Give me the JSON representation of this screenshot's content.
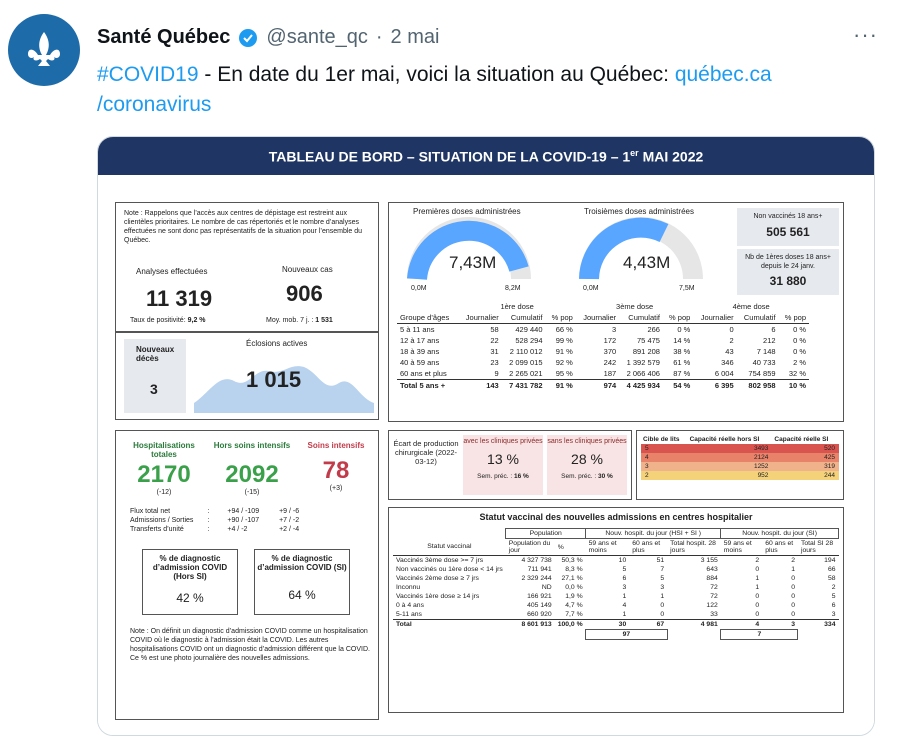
{
  "tweet": {
    "name": "Santé Québec",
    "handle": "@sante_qc",
    "date": "2 mai",
    "more": "···",
    "hashtag": "#COVID19",
    "text": " - En date du 1er mai, voici la situation au Québec: ",
    "link": "québec.ca /coronavirus"
  },
  "dashboard": {
    "title_pre": "TABLEAU DE BORD – SITUATION DE LA COVID-19 – 1",
    "title_sup": "er",
    "title_post": " MAI 2022",
    "note": "Note : Rappelons que l’accès aux centres de dépistage est restreint aux clientèles prioritaires. Le nombre de cas répertoriés et le nombre d’analyses effectuées ne sont donc pas représentatifs de la situation pour l’ensemble du Québec.",
    "analyses_label": "Analyses effectuées",
    "analyses_value": "11 319",
    "positivity_label": "Taux de positivité:",
    "positivity_value": "9,2 %",
    "cases_label": "Nouveaux cas",
    "cases_value": "906",
    "cases_avg_label": "Moy. mob. 7 j. :",
    "cases_avg_value": "1 531",
    "deaths_label": "Nouveaux décès",
    "deaths_value": "3",
    "eclosions_label": "Éclosions actives",
    "eclosions_value": "1 015",
    "dose1_label": "Premières doses administrées",
    "dose1_value": "7,43M",
    "dose1_min": "0,0M",
    "dose1_max": "8,2M",
    "dose3_label": "Troisièmes doses administrées",
    "dose3_value": "4,43M",
    "dose3_min": "0,0M",
    "dose3_max": "7,5M",
    "unvacc_label": "Non vaccinés 18 ans+",
    "unvacc_value": "505 561",
    "firstdose_label": "Nb de 1ères doses 18 ans+ depuis le 24 janv.",
    "firstdose_value": "31 880",
    "vacc_table": {
      "groups": [
        "1ère dose",
        "3ème dose",
        "4ème dose"
      ],
      "headers": [
        "Groupe d’âges",
        "Journalier",
        "Cumulatif",
        "% pop",
        "Journalier",
        "Cumulatif",
        "% pop",
        "Journalier",
        "Cumulatif",
        "% pop"
      ],
      "rows": [
        [
          "5 à 11 ans",
          "58",
          "429 440",
          "66 %",
          "3",
          "266",
          "0 %",
          "0",
          "6",
          "0 %"
        ],
        [
          "12 à 17 ans",
          "22",
          "528 294",
          "99 %",
          "172",
          "75 475",
          "14 %",
          "2",
          "212",
          "0 %"
        ],
        [
          "18 à 39 ans",
          "31",
          "2 110 012",
          "91 %",
          "370",
          "891 208",
          "38 %",
          "43",
          "7 148",
          "0 %"
        ],
        [
          "40 à 59 ans",
          "23",
          "2 099 015",
          "92 %",
          "242",
          "1 392 579",
          "61 %",
          "346",
          "40 733",
          "2 %"
        ],
        [
          "60 ans et plus",
          "9",
          "2 265 021",
          "95 %",
          "187",
          "2 066 406",
          "87 %",
          "6 004",
          "754 859",
          "32 %"
        ],
        [
          "Total 5 ans +",
          "143",
          "7 431 782",
          "91 %",
          "974",
          "4 425 934",
          "54 %",
          "6 395",
          "802 958",
          "10 %"
        ]
      ]
    },
    "hosp_label": "Hospitalisations totales",
    "hosp_value": "2170",
    "hosp_delta": "(-12)",
    "hors_label": "Hors soins intensifs",
    "hors_value": "2092",
    "hors_delta": "(-15)",
    "si_label": "Soins intensifs",
    "si_value": "78",
    "si_delta": "(+3)",
    "flux": [
      [
        "Flux total net",
        ":",
        "+94 / -109",
        "+9 / -6"
      ],
      [
        "Admissions / Sorties",
        ":",
        "+90 / -107",
        "+7 / -2"
      ],
      [
        "Transferts d’unité",
        ":",
        "+4 / -2",
        "+2 / -4"
      ]
    ],
    "pct_hors_label": "% de diagnostic d’admission COVID (Hors SI)",
    "pct_hors_value": "42 %",
    "pct_si_label": "% de diagnostic d’admission COVID (SI)",
    "pct_si_value": "64 %",
    "note2": "Note : On définit un diagnostic d’admission COVID comme un hospitalisation COVID où le diagnostic à l’admission était la COVID. Les autres hospitalisations COVID ont un diagnostic d’admission différent que la COVID. Ce % est une photo journalière des nouvelles admissions.",
    "ecart_label": "Écart de production chirurgicale (2022-03-12)",
    "avec_label": "avec les cliniques privées",
    "avec_value": "13 %",
    "avec_prec": "Sem. préc. :",
    "avec_prec_value": "16 %",
    "sans_label": "sans les cliniques privées",
    "sans_value": "28 %",
    "sans_prec": "Sem. préc. :",
    "sans_prec_value": "30 %",
    "lits_headers": [
      "Cible de lits",
      "Capacité réelle hors SI",
      "Capacité réelle SI"
    ],
    "lits_rows": [
      [
        "5",
        "3493",
        "520"
      ],
      [
        "4",
        "2124",
        "425"
      ],
      [
        "3",
        "1252",
        "319"
      ],
      [
        "2",
        "952",
        "244"
      ]
    ],
    "lits_colors": [
      "#d9534f",
      "#e8836a",
      "#f0b28a",
      "#f3d27a"
    ],
    "statut_title": "Statut vaccinal des nouvelles admissions en centres hospitalier",
    "statut_group_headers": [
      "Population",
      "Nouv. hospit. du jour (HSI + SI )",
      "Nouv. hospit. du jour (SI)"
    ],
    "statut_headers": [
      "Statut vaccinal",
      "Population du jour",
      "%",
      "59 ans et moins",
      "60 ans et plus",
      "Total hospit. 28 jours",
      "59 ans et moins",
      "60 ans et plus",
      "Total SI 28 jours"
    ],
    "statut_rows": [
      [
        "Vaccinés 3ème dose >= 7 jrs",
        "4 327 738",
        "50,3 %",
        "10",
        "51",
        "3 155",
        "2",
        "2",
        "194"
      ],
      [
        "Non vaccinés ou 1ère dose < 14 jrs",
        "711 941",
        "8,3 %",
        "5",
        "7",
        "643",
        "0",
        "1",
        "66"
      ],
      [
        "Vaccinés 2ème dose ≥ 7 jrs",
        "2 329 244",
        "27,1 %",
        "6",
        "5",
        "884",
        "1",
        "0",
        "58"
      ],
      [
        "Inconnu",
        "ND",
        "0,0 %",
        "3",
        "3",
        "72",
        "1",
        "0",
        "2"
      ],
      [
        "Vaccinés 1ère dose ≥ 14 jrs",
        "166 921",
        "1,9 %",
        "1",
        "1",
        "72",
        "0",
        "0",
        "5"
      ],
      [
        "0 à 4 ans",
        "405 149",
        "4,7 %",
        "4",
        "0",
        "122",
        "0",
        "0",
        "6"
      ],
      [
        "5-11 ans",
        "660 920",
        "7,7 %",
        "1",
        "0",
        "33",
        "0",
        "0",
        "3"
      ],
      [
        "Total",
        "8 601 913",
        "100,0 %",
        "30",
        "67",
        "4 981",
        "4",
        "3",
        "334"
      ]
    ],
    "statut_sub_total1": "97",
    "statut_sub_total2": "7"
  }
}
